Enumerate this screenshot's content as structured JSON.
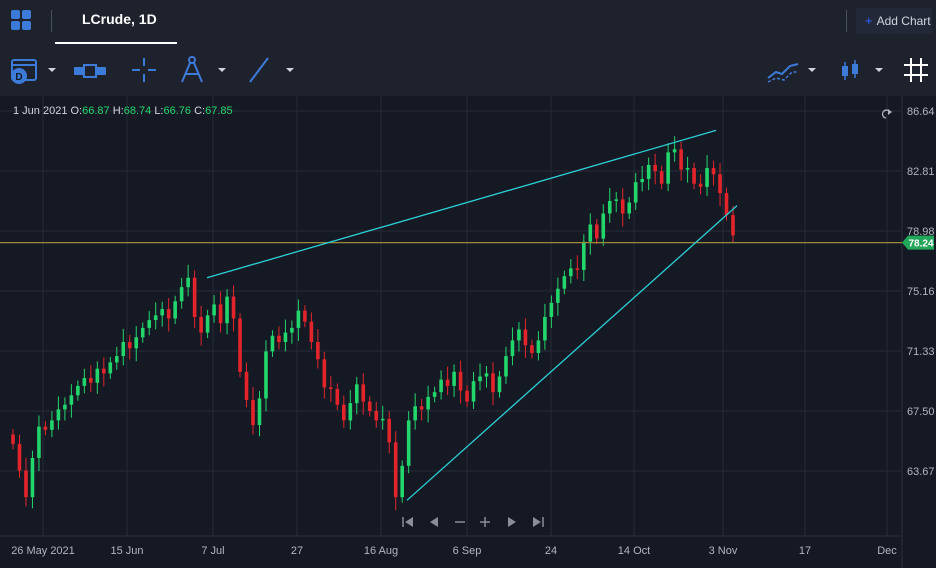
{
  "tab": {
    "title": "LCrude, 1D"
  },
  "header": {
    "add_chart_label": "Add Chart"
  },
  "toolbar": {
    "tools": [
      "calendar-icon",
      "range-icon",
      "crosshair-icon",
      "drawing-compass-icon",
      "trendline-icon",
      "indicators-icon",
      "candlestick-icon",
      "grid-icon"
    ]
  },
  "legend": {
    "date": "1 Jun 2021",
    "open_label": "O:",
    "open": "66.87",
    "high_label": "H:",
    "high": "68.74",
    "low_label": "L:",
    "low": "66.76",
    "close_label": "C:",
    "close": "67.85"
  },
  "price_axis": {
    "labels": [
      "86.64",
      "82.81",
      "78.98",
      "75.16",
      "71.33",
      "67.50",
      "63.67"
    ],
    "current_price": "78.24"
  },
  "time_axis": {
    "labels": [
      "26 May 2021",
      "15 Jun",
      "7 Jul",
      "27",
      "16 Aug",
      "6 Sep",
      "24",
      "14 Oct",
      "3 Nov",
      "17",
      "Dec"
    ]
  },
  "colors": {
    "up": "#22d66b",
    "down": "#e3252b",
    "trendline": "#2bd0d6",
    "price_line": "#9a8a3a",
    "price_badge": "#22a65a"
  },
  "chart_data": {
    "type": "candlestick",
    "ylim": [
      60.5,
      87.2
    ],
    "y_ticks": [
      63.67,
      67.5,
      71.33,
      75.16,
      78.98,
      82.81,
      86.64
    ],
    "x_ticks": [
      "26 May 2021",
      "15 Jun",
      "7 Jul",
      "27",
      "16 Aug",
      "6 Sep",
      "24",
      "14 Oct",
      "3 Nov",
      "17",
      "Dec"
    ],
    "current_price": 78.24,
    "close_series": [
      65.4,
      63.7,
      62.0,
      64.5,
      66.5,
      66.3,
      66.9,
      67.6,
      67.9,
      68.5,
      69.1,
      69.6,
      69.3,
      70.2,
      69.9,
      70.6,
      71.0,
      71.9,
      71.5,
      72.2,
      72.8,
      73.3,
      73.6,
      74.0,
      73.4,
      74.5,
      75.4,
      76.0,
      73.5,
      72.5,
      73.6,
      74.3,
      73.1,
      74.8,
      73.4,
      70.0,
      68.2,
      66.6,
      68.3,
      71.3,
      72.3,
      71.9,
      72.5,
      72.8,
      73.9,
      73.2,
      71.9,
      70.8,
      69.0,
      68.9,
      67.9,
      66.9,
      68.0,
      69.2,
      68.1,
      67.5,
      66.9,
      67.0,
      65.5,
      62.0,
      64.0,
      66.9,
      67.8,
      67.6,
      68.4,
      68.7,
      69.5,
      69.1,
      70.0,
      68.8,
      68.1,
      69.4,
      69.7,
      69.9,
      68.7,
      69.7,
      71.0,
      72.0,
      72.7,
      71.7,
      71.2,
      72.0,
      73.5,
      74.4,
      75.3,
      76.1,
      76.6,
      76.5,
      78.3,
      79.4,
      78.5,
      80.1,
      80.9,
      81.0,
      80.1,
      80.8,
      82.1,
      82.3,
      83.2,
      82.8,
      82.0,
      84.0,
      84.2,
      82.9,
      83.0,
      82.0,
      81.8,
      83.0,
      82.6,
      81.4,
      80.0,
      78.7
    ]
  }
}
